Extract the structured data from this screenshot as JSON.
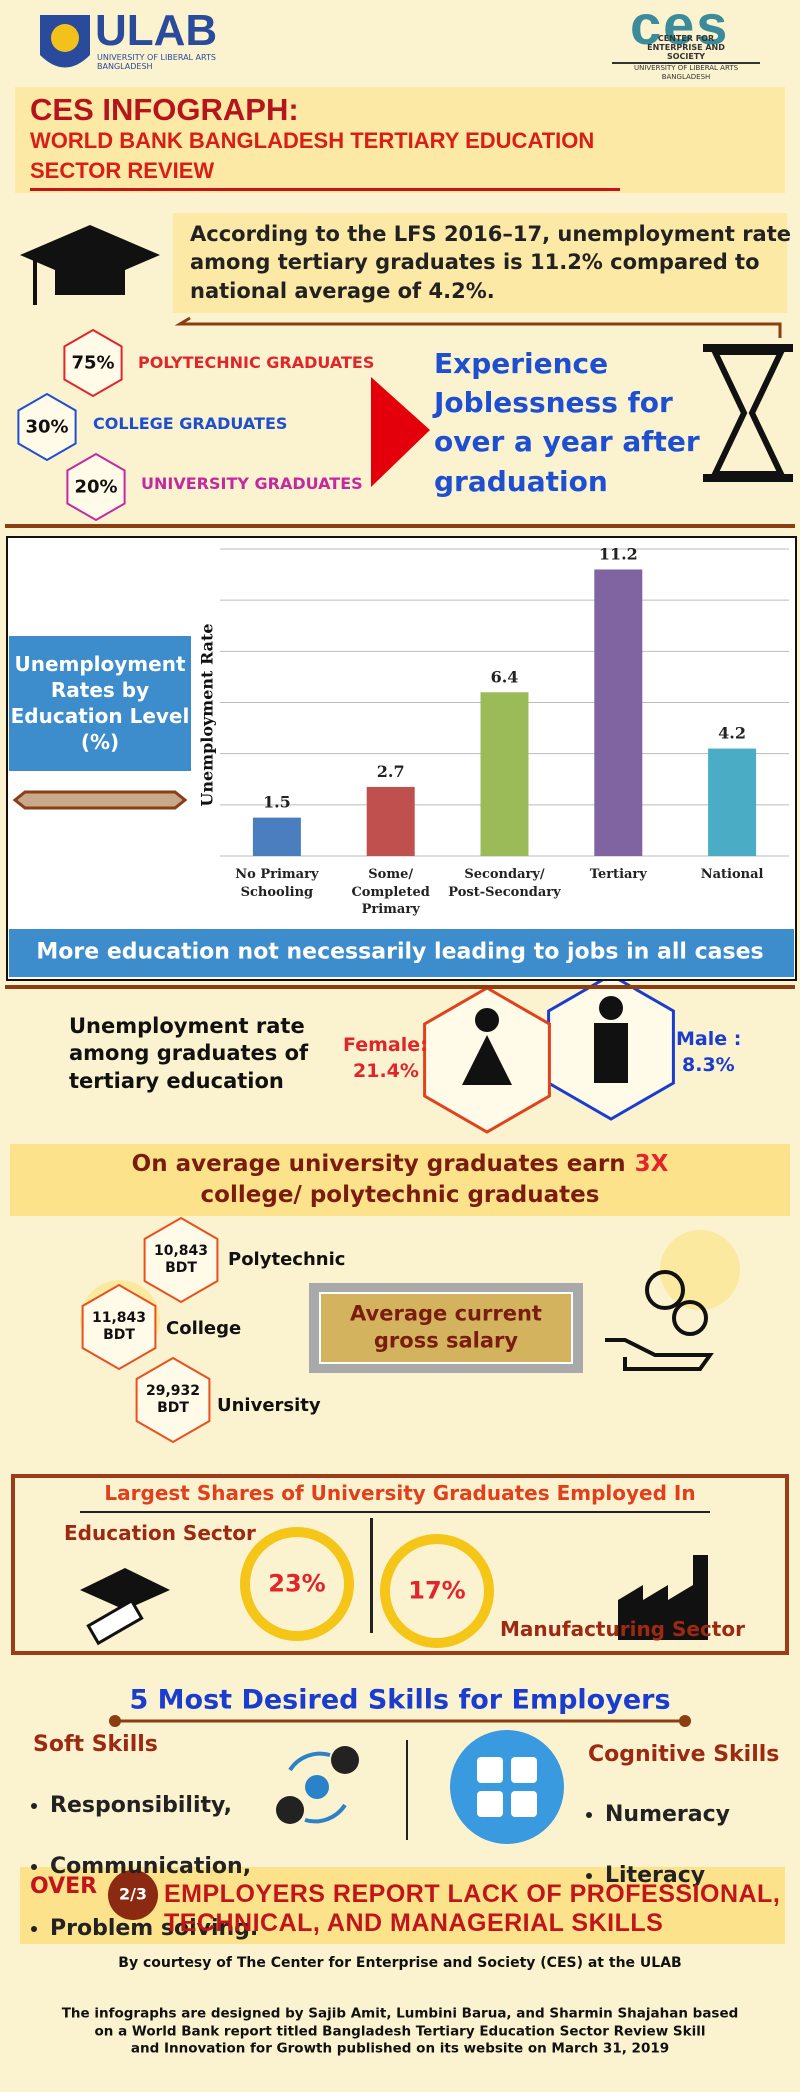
{
  "header": {
    "ulab_name": "ULAB",
    "ulab_sub": "UNIVERSITY OF LIBERAL ARTS\nBANGLADESH",
    "ces_name": "ces",
    "ces_sub": "CENTER FOR\nENTERPRISE AND SOCIETY",
    "ces_university": "UNIVERSITY OF LIBERAL ARTS BANGLADESH"
  },
  "title": {
    "main": "CES INFOGRAPH:",
    "subtitle": "WORLD BANK BANGLADESH TERTIARY EDUCATION\nSECTOR REVIEW"
  },
  "intro": "According to the LFS 2016–17, unemployment rate\namong tertiary graduates is 11.2% compared to\nnational average of 4.2%.",
  "joblessness": {
    "groups": [
      {
        "share": "75%",
        "label": "POLYTECHNIC GRADUATES"
      },
      {
        "share": "30%",
        "label": "COLLEGE GRADUATES"
      },
      {
        "share": "20%",
        "label": "UNIVERSITY GRADUATES"
      }
    ],
    "statement": "Experience\nJoblessness for\nover a year after\ngraduation"
  },
  "chart_data": {
    "type": "bar",
    "title": "Unemployment\nRates by\nEducation Level\n(%)",
    "y_label": "Unemployment Rate",
    "categories": [
      "No Primary\nSchooling",
      "Some/\nCompleted\nPrimary",
      "Secondary/\nPost-Secondary",
      "Tertiary",
      "National"
    ],
    "values": [
      1.5,
      2.7,
      6.4,
      11.2,
      4.2
    ],
    "colors": [
      "#4a7ebf",
      "#c0504d",
      "#9bbb59",
      "#8064a2",
      "#4bacc6"
    ],
    "ylim": [
      0,
      12
    ],
    "gridlines": [
      0,
      2,
      4,
      6,
      8,
      10,
      12
    ],
    "caption": "More education not necessarily leading to jobs in all cases"
  },
  "gender": {
    "heading": "Unemployment rate\namong graduates of\ntertiary education",
    "female_label": "Female:",
    "female_value": "21.4%",
    "male_label": "Male :",
    "male_value": "8.3%"
  },
  "earnings": {
    "headline_start": "On average university graduates earn",
    "headline_highlight": "3X",
    "headline_end": "college/ polytechnic graduates",
    "salaries": [
      {
        "amount": "10,843\nBDT",
        "label": "Polytechnic"
      },
      {
        "amount": "11,843\nBDT",
        "label": "College"
      },
      {
        "amount": "29,932\nBDT",
        "label": "University"
      }
    ],
    "salary_box": "Average current\ngross salary"
  },
  "employment": {
    "heading": "Largest Shares of University Graduates Employed In",
    "sectors": [
      {
        "name": "Education Sector",
        "share": "23%"
      },
      {
        "name": "Manufacturing Sector",
        "share": "17%"
      }
    ]
  },
  "skills": {
    "heading": "5 Most Desired Skills for Employers",
    "soft": {
      "title": "Soft Skills",
      "items": [
        "Responsibility,",
        "Communication,",
        "Problem solving."
      ]
    },
    "cognitive": {
      "title": "Cognitive Skills",
      "items": [
        "Numeracy",
        "Literacy"
      ]
    }
  },
  "employers": {
    "prefix": "OVER",
    "fraction": "2/3",
    "statement": "EMPLOYERS REPORT LACK OF PROFESSIONAL,\nTECHNICAL, AND MANAGERIAL SKILLS"
  },
  "footer": {
    "courtesy": "By courtesy of The Center for Enterprise and Society (CES) at the ULAB",
    "credits": "The infographs are designed by Sajib Amit, Lumbini Barua, and Sharmin Shajahan based\non a World Bank report titled Bangladesh Tertiary Education Sector Review Skill\nand Innovation for Growth published on its website on March 31, 2019"
  }
}
